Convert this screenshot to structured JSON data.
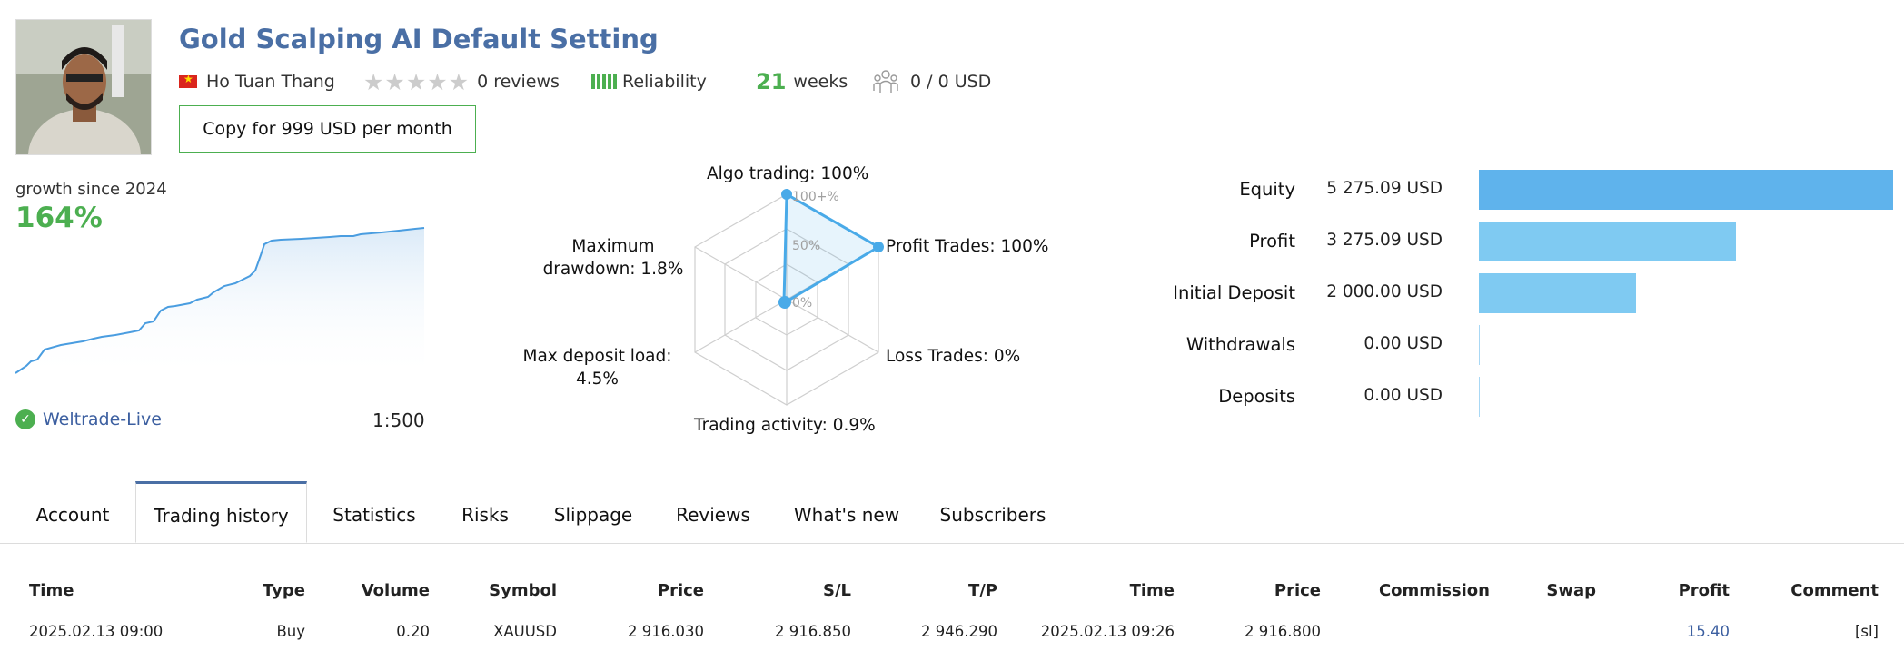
{
  "header": {
    "title": "Gold Scalping AI Default Setting",
    "author": "Ho Tuan Thang",
    "reviews": "0 reviews",
    "reliability_label": "Reliability",
    "weeks_value": "21",
    "weeks_label": "weeks",
    "subscribers": "0 / 0 USD",
    "copy_button": "Copy for 999 USD per month",
    "rating_stars": 0,
    "reliability_bars": 5
  },
  "growth": {
    "label": "growth since 2024",
    "value": "164%",
    "broker": "Weltrade-Live",
    "leverage": "1:500"
  },
  "radar": {
    "algo": "Algo trading: 100%",
    "profit_trades": "Profit Trades: 100%",
    "loss_trades": "Loss Trades: 0%",
    "activity": "Trading activity: 0.9%",
    "deposit_load_1": "Max deposit load:",
    "deposit_load_2": "4.5%",
    "drawdown_1": "Maximum",
    "drawdown_2": "drawdown: 1.8%",
    "ring_100": "100+%",
    "ring_50": "50%",
    "ring_0": "0%"
  },
  "balance": {
    "rows": [
      {
        "label": "Equity",
        "value": "5 275.09 USD",
        "amount": 5275.09
      },
      {
        "label": "Profit",
        "value": "3 275.09 USD",
        "amount": 3275.09
      },
      {
        "label": "Initial Deposit",
        "value": "2 000.00 USD",
        "amount": 2000.0
      },
      {
        "label": "Withdrawals",
        "value": "0.00 USD",
        "amount": 0
      },
      {
        "label": "Deposits",
        "value": "0.00 USD",
        "amount": 0
      }
    ]
  },
  "tabs": [
    "Account",
    "Trading history",
    "Statistics",
    "Risks",
    "Slippage",
    "Reviews",
    "What's new",
    "Subscribers"
  ],
  "active_tab": "Trading history",
  "table": {
    "headers": [
      "Time",
      "Type",
      "Volume",
      "Symbol",
      "Price",
      "S/L",
      "T/P",
      "Time",
      "Price",
      "Commission",
      "Swap",
      "Profit",
      "Comment"
    ],
    "rows": [
      [
        "2025.02.13 09:00",
        "Buy",
        "0.20",
        "XAUUSD",
        "2 916.030",
        "2 916.850",
        "2 946.290",
        "2025.02.13 09:26",
        "2 916.800",
        "",
        "",
        "15.40",
        "[sl]"
      ]
    ]
  },
  "colors": {
    "accent": "#4a6fa5",
    "green": "#4caf50",
    "bar_equity": "#5fb3ec",
    "bar_other": "#7fcaf2",
    "radar": "#49aae8"
  }
}
